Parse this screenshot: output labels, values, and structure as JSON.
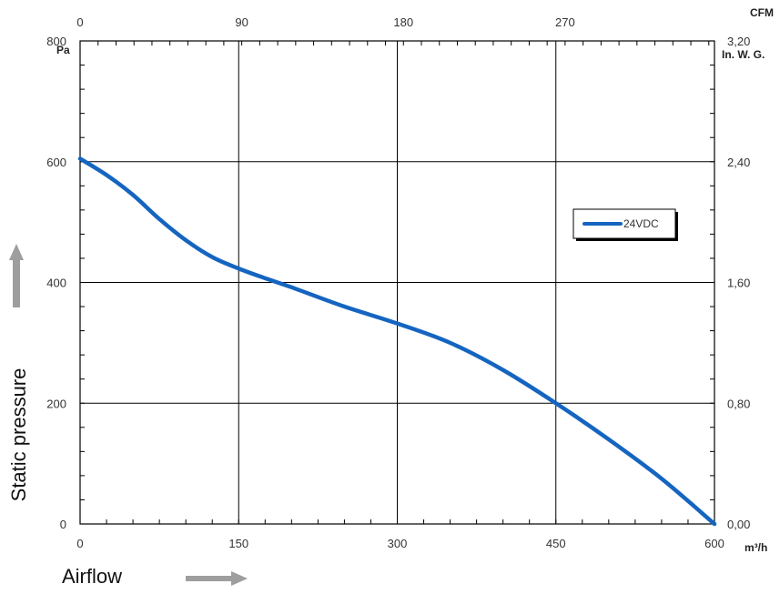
{
  "chart_data": {
    "type": "line",
    "xlabel": "Airflow",
    "ylabel": "Static pressure",
    "x_unit": "m³/h",
    "y_unit": "Pa",
    "x2_unit": "CFM",
    "y2_unit": "In. W. G.",
    "xlim": [
      0,
      600
    ],
    "ylim": [
      0,
      800
    ],
    "x_ticks": [
      "0",
      "150",
      "300",
      "450",
      "600"
    ],
    "y_ticks": [
      "0",
      "200",
      "400",
      "600",
      "800"
    ],
    "x2_ticks": [
      "0",
      "90",
      "180",
      "270"
    ],
    "y2_ticks": [
      "0,00",
      "0,80",
      "1,60",
      "2,40",
      "3,20"
    ],
    "grid": true,
    "legend_position": "right",
    "series": [
      {
        "name": "24VDC",
        "color": "#1565c0",
        "x": [
          0,
          25,
          50,
          75,
          100,
          125,
          150,
          175,
          200,
          250,
          300,
          350,
          400,
          450,
          500,
          550,
          600
        ],
        "y": [
          605,
          578,
          545,
          505,
          470,
          442,
          423,
          407,
          392,
          360,
          332,
          300,
          255,
          200,
          140,
          75,
          0
        ]
      }
    ]
  }
}
